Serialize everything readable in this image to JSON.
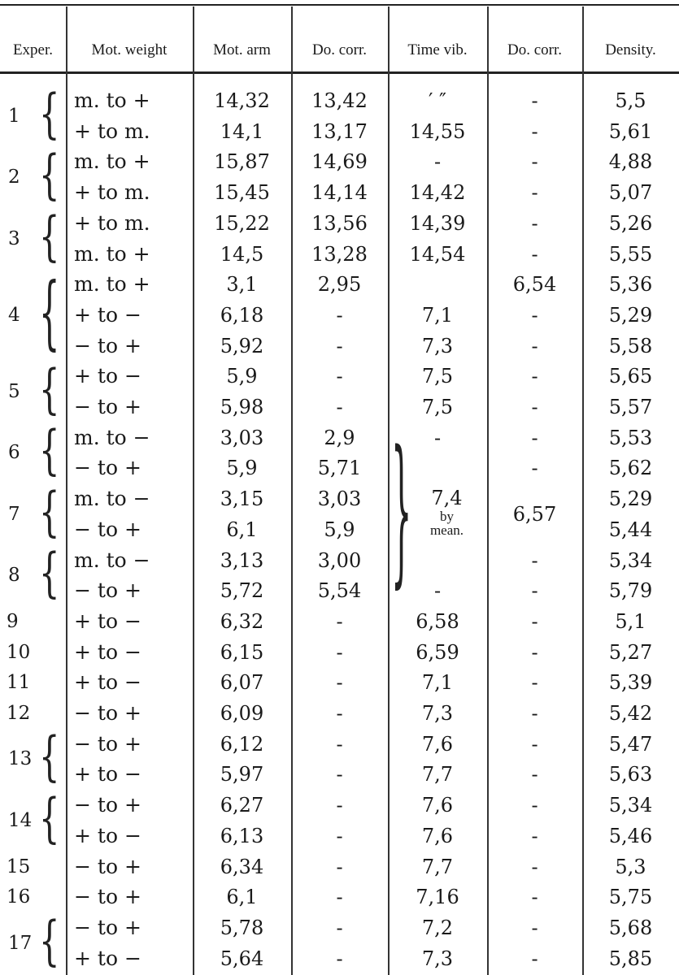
{
  "table": {
    "headers": [
      "Exper.",
      "Mot. weight",
      "Mot. arm",
      "Do. corr.",
      "Time vib.",
      "Do. corr.",
      "Density."
    ],
    "rows": [
      {
        "exper": "",
        "weight": "m. to +",
        "arm": "14,32",
        "corr": "13,42",
        "time": "′   ″",
        "corr2": "-",
        "density": "5,5"
      },
      {
        "exper": "",
        "weight": "+ to m.",
        "arm": "14,1",
        "corr": "13,17",
        "time": "14,55",
        "corr2": "-",
        "density": "5,61"
      },
      {
        "exper": "",
        "weight": "m. to +",
        "arm": "15,87",
        "corr": "14,69",
        "time": "-",
        "corr2": "-",
        "density": "4,88"
      },
      {
        "exper": "",
        "weight": "+ to m.",
        "arm": "15,45",
        "corr": "14,14",
        "time": "14,42",
        "corr2": "-",
        "density": "5,07"
      },
      {
        "exper": "",
        "weight": "+ to m.",
        "arm": "15,22",
        "corr": "13,56",
        "time": "14,39",
        "corr2": "-",
        "density": "5,26"
      },
      {
        "exper": "",
        "weight": "m. to +",
        "arm": "14,5",
        "corr": "13,28",
        "time": "14,54",
        "corr2": "-",
        "density": "5,55"
      },
      {
        "exper": "",
        "weight": "m. to +",
        "arm": "3,1",
        "corr": "2,95",
        "time": "",
        "corr2": "6,54",
        "density": "5,36"
      },
      {
        "exper": "",
        "weight": "+ to −",
        "arm": "6,18",
        "corr": "-",
        "time": "7,1",
        "corr2": "-",
        "density": "5,29"
      },
      {
        "exper": "",
        "weight": "− to +",
        "arm": "5,92",
        "corr": "-",
        "time": "7,3",
        "corr2": "-",
        "density": "5,58"
      },
      {
        "exper": "",
        "weight": "+ to −",
        "arm": "5,9",
        "corr": "-",
        "time": "7,5",
        "corr2": "-",
        "density": "5,65"
      },
      {
        "exper": "",
        "weight": "− to +",
        "arm": "5,98",
        "corr": "-",
        "time": "7,5",
        "corr2": "-",
        "density": "5,57"
      },
      {
        "exper": "",
        "weight": "m. to −",
        "arm": "3,03",
        "corr": "2,9",
        "time": "-",
        "corr2": "-",
        "density": "5,53"
      },
      {
        "exper": "",
        "weight": "− to +",
        "arm": "5,9",
        "corr": "5,71",
        "time": "",
        "corr2": "-",
        "density": "5,62"
      },
      {
        "exper": "",
        "weight": "m. to −",
        "arm": "3,15",
        "corr": "3,03",
        "time": "",
        "corr2": "",
        "density": "5,29"
      },
      {
        "exper": "",
        "weight": "− to +",
        "arm": "6,1",
        "corr": "5,9",
        "time": "",
        "corr2": "",
        "density": "5,44"
      },
      {
        "exper": "",
        "weight": "m. to −",
        "arm": "3,13",
        "corr": "3,00",
        "time": "",
        "corr2": "-",
        "density": "5,34"
      },
      {
        "exper": "",
        "weight": "− to +",
        "arm": "5,72",
        "corr": "5,54",
        "time": "-",
        "corr2": "-",
        "density": "5,79"
      },
      {
        "exper": "9",
        "weight": "+ to −",
        "arm": "6,32",
        "corr": "-",
        "time": "6,58",
        "corr2": "-",
        "density": "5,1"
      },
      {
        "exper": "10",
        "weight": "+ to −",
        "arm": "6,15",
        "corr": "-",
        "time": "6,59",
        "corr2": "-",
        "density": "5,27"
      },
      {
        "exper": "11",
        "weight": "+ to −",
        "arm": "6,07",
        "corr": "-",
        "time": "7,1",
        "corr2": "-",
        "density": "5,39"
      },
      {
        "exper": "12",
        "weight": "− to +",
        "arm": "6,09",
        "corr": "-",
        "time": "7,3",
        "corr2": "-",
        "density": "5,42"
      },
      {
        "exper": "",
        "weight": "− to +",
        "arm": "6,12",
        "corr": "-",
        "time": "7,6",
        "corr2": "-",
        "density": "5,47"
      },
      {
        "exper": "",
        "weight": "+ to −",
        "arm": "5,97",
        "corr": "-",
        "time": "7,7",
        "corr2": "-",
        "density": "5,63"
      },
      {
        "exper": "",
        "weight": "− to +",
        "arm": "6,27",
        "corr": "-",
        "time": "7,6",
        "corr2": "-",
        "density": "5,34"
      },
      {
        "exper": "",
        "weight": "+ to −",
        "arm": "6,13",
        "corr": "-",
        "time": "7,6",
        "corr2": "-",
        "density": "5,46"
      },
      {
        "exper": "15",
        "weight": "− to +",
        "arm": "6,34",
        "corr": "-",
        "time": "7,7",
        "corr2": "-",
        "density": "5,3"
      },
      {
        "exper": "16",
        "weight": "− to +",
        "arm": "6,1",
        "corr": "-",
        "time": "7,16",
        "corr2": "-",
        "density": "5,75"
      },
      {
        "exper": "",
        "weight": "− to +",
        "arm": "5,78",
        "corr": "-",
        "time": "7,2",
        "corr2": "-",
        "density": "5,68"
      },
      {
        "exper": "",
        "weight": "+ to −",
        "arm": "5,64",
        "corr": "-",
        "time": "7,3",
        "corr2": "-",
        "density": "5,85"
      }
    ],
    "groups": [
      {
        "label": "1",
        "start": 0,
        "count": 2
      },
      {
        "label": "2",
        "start": 2,
        "count": 2
      },
      {
        "label": "3",
        "start": 4,
        "count": 2
      },
      {
        "label": "4",
        "start": 6,
        "count": 3
      },
      {
        "label": "5",
        "start": 9,
        "count": 2
      },
      {
        "label": "6",
        "start": 11,
        "count": 2
      },
      {
        "label": "7",
        "start": 13,
        "count": 2
      },
      {
        "label": "8",
        "start": 15,
        "count": 2
      },
      {
        "label": "13",
        "start": 21,
        "count": 2
      },
      {
        "label": "14",
        "start": 23,
        "count": 2
      },
      {
        "label": "17",
        "start": 27,
        "count": 2
      }
    ],
    "time_mean": {
      "value": "7,4",
      "note1": "by",
      "note2": "mean.",
      "start": 11,
      "count": 6
    },
    "corr2_merged": {
      "value": "6,57",
      "start": 13,
      "count": 2
    }
  }
}
